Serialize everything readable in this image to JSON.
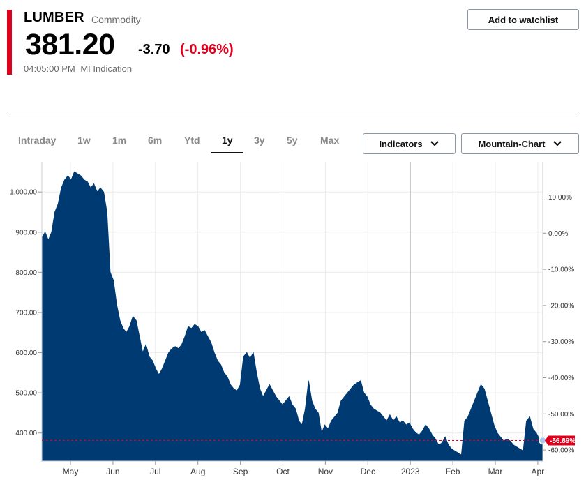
{
  "quote": {
    "symbol": "LUMBER",
    "asset_type": "Commodity",
    "price": "381.20",
    "change": "-3.70",
    "change_pct": "(-0.96%)",
    "time": "04:05:00 PM",
    "indication": "MI Indication",
    "accent_color": "#e0001b"
  },
  "actions": {
    "watchlist_label": "Add to watchlist"
  },
  "ranges": [
    "Intraday",
    "1w",
    "1m",
    "6m",
    "Ytd",
    "1y",
    "3y",
    "5y",
    "Max"
  ],
  "active_range": "1y",
  "toolbar": {
    "indicators_label": "Indicators",
    "chart_type_label": "Mountain-Chart"
  },
  "chart_data": {
    "type": "area",
    "fill_color": "#003a73",
    "left_ticks": [
      {
        "value": 1000,
        "label": "1,000.00"
      },
      {
        "value": 900,
        "label": "900.00"
      },
      {
        "value": 800,
        "label": "800.00"
      },
      {
        "value": 700,
        "label": "700.00"
      },
      {
        "value": 600,
        "label": "600.00"
      },
      {
        "value": 500,
        "label": "500.00"
      },
      {
        "value": 400,
        "label": "400.00"
      }
    ],
    "right_ticks": [
      "10.00%",
      "0.00%",
      "-10.00%",
      "-20.00%",
      "-30.00%",
      "-40.00%",
      "-50.00%",
      "-60.00%"
    ],
    "current_pct_label": "-56.89%",
    "last_value": 381.2,
    "y_range": [
      330,
      1075
    ],
    "months": [
      "May",
      "Jun",
      "Jul",
      "Aug",
      "Sep",
      "Oct",
      "Nov",
      "Dec",
      "2023",
      "Feb",
      "Mar",
      "Apr"
    ],
    "year_boundary_index": 8,
    "values": [
      885,
      900,
      880,
      900,
      950,
      970,
      1010,
      1030,
      1040,
      1030,
      1050,
      1045,
      1040,
      1030,
      1025,
      1010,
      1020,
      1000,
      1010,
      1000,
      950,
      800,
      780,
      720,
      680,
      660,
      650,
      665,
      690,
      680,
      640,
      600,
      620,
      590,
      580,
      560,
      545,
      560,
      580,
      600,
      610,
      615,
      610,
      620,
      640,
      665,
      660,
      670,
      665,
      650,
      655,
      640,
      625,
      600,
      580,
      570,
      550,
      540,
      520,
      510,
      505,
      520,
      590,
      600,
      585,
      600,
      550,
      510,
      490,
      505,
      520,
      505,
      490,
      480,
      470,
      480,
      490,
      470,
      460,
      430,
      420,
      460,
      530,
      480,
      460,
      450,
      400,
      420,
      410,
      430,
      440,
      450,
      480,
      490,
      500,
      510,
      520,
      525,
      530,
      500,
      490,
      470,
      460,
      455,
      450,
      440,
      430,
      445,
      430,
      440,
      425,
      430,
      420,
      425,
      410,
      400,
      395,
      405,
      420,
      410,
      395,
      385,
      370,
      375,
      390,
      370,
      360,
      355,
      350,
      345,
      430,
      440,
      460,
      480,
      500,
      520,
      510,
      480,
      450,
      420,
      400,
      390,
      380,
      385,
      380,
      370,
      365,
      360,
      355,
      430,
      440,
      410,
      400,
      385,
      380
    ]
  }
}
